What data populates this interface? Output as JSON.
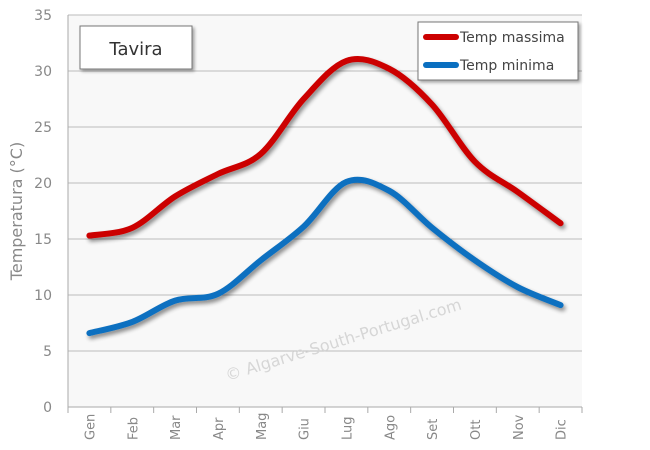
{
  "chart_data": {
    "type": "line",
    "title": "Tavira",
    "xlabel": "",
    "ylabel": "Temperatura (°C)",
    "categories": [
      "Gen",
      "Feb",
      "Mar",
      "Apr",
      "Mag",
      "Giu",
      "Lug",
      "Ago",
      "Set",
      "Ott",
      "Nov",
      "Dic"
    ],
    "series": [
      {
        "name": "Temp massima",
        "color": "#cc0000",
        "values": [
          15.3,
          16.0,
          18.8,
          20.8,
          22.6,
          27.5,
          30.9,
          30.2,
          27.0,
          21.9,
          19.2,
          16.4
        ]
      },
      {
        "name": "Temp minima",
        "color": "#0a6fc0",
        "values": [
          6.6,
          7.6,
          9.5,
          10.1,
          13.1,
          16.1,
          20.1,
          19.3,
          16.0,
          13.1,
          10.7,
          9.1
        ]
      }
    ],
    "ylim": [
      0,
      35
    ],
    "yticks": [
      0,
      5,
      10,
      15,
      20,
      25,
      30,
      35
    ],
    "grid": true,
    "legend_position": "top-right",
    "background": "#f8f8f8",
    "watermark": "© Algarve-South-Portugal.com"
  }
}
